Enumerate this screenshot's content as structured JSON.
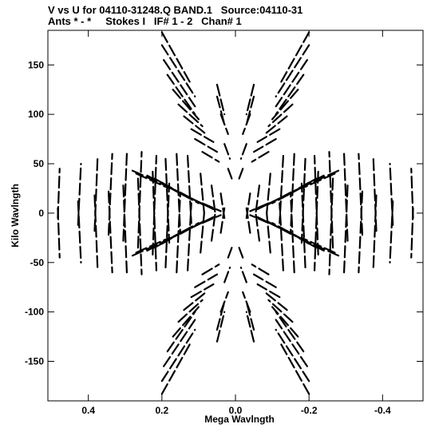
{
  "header": {
    "line1": "V vs U for 04110-31248.Q BAND.1   Source:04110-31",
    "line2": "Ants * - *     Stokes I   IF# 1 - 2   Chan# 1"
  },
  "chart_data": {
    "type": "scatter",
    "title": "V vs U for 04110-31248.Q BAND.1   Source:04110-31",
    "subtitle": "Ants * - *     Stokes I   IF# 1 - 2   Chan# 1",
    "xlabel": "Mega Wavlngth",
    "ylabel": "Kilo Wavlngth",
    "x_reversed": true,
    "xlim": [
      0.51,
      -0.51
    ],
    "ylim": [
      -190,
      185
    ],
    "x_ticks": [
      0.4,
      0.2,
      0,
      -0.2,
      -0.4
    ],
    "x_tick_labels": [
      "0.4",
      "0.2",
      "0.0",
      "-0.2",
      "-0.4"
    ],
    "y_ticks": [
      -150,
      -100,
      -50,
      0,
      50,
      100,
      150
    ],
    "y_tick_labels": [
      "-150",
      "-100",
      "-50",
      "0",
      "50",
      "100",
      "150"
    ],
    "grid": false,
    "marker_color": "#000000",
    "description_of_pattern": "uv-coverage tracks: mirrored arc segments forming an X/hourglass pattern",
    "series": [
      {
        "values": [
          [
            0.483,
            -5,
            0.478,
            45
          ],
          [
            0.428,
            -12,
            0.42,
            50
          ],
          [
            0.383,
            -18,
            0.375,
            55
          ],
          [
            0.345,
            -22,
            0.335,
            60
          ],
          [
            0.305,
            -28,
            0.295,
            63
          ],
          [
            0.265,
            -35,
            0.255,
            62
          ],
          [
            0.225,
            -42,
            0.215,
            58
          ],
          [
            0.19,
            -55,
            0.18,
            30
          ],
          [
            0.16,
            -60,
            0.15,
            20
          ],
          [
            0.13,
            -58,
            0.12,
            10
          ],
          [
            0.095,
            -40,
            0.085,
            0
          ],
          [
            0.065,
            -28,
            0.055,
            0
          ],
          [
            0.04,
            -20,
            0.03,
            5
          ],
          [
            0.2,
            183,
            0.12,
            130
          ],
          [
            0.2,
            170,
            0.11,
            118
          ],
          [
            0.195,
            155,
            0.11,
            108
          ],
          [
            0.185,
            140,
            0.11,
            100
          ],
          [
            0.17,
            125,
            0.1,
            95
          ],
          [
            0.155,
            110,
            0.09,
            88
          ],
          [
            0.14,
            98,
            0.08,
            80
          ],
          [
            0.12,
            85,
            0.06,
            72
          ],
          [
            0.11,
            75,
            0.05,
            62
          ],
          [
            0.09,
            62,
            0.045,
            52
          ],
          [
            0.05,
            130,
            0.03,
            100
          ],
          [
            0.05,
            118,
            0.03,
            90
          ],
          [
            0.04,
            100,
            0.02,
            80
          ],
          [
            0.03,
            70,
            0.015,
            55
          ],
          [
            0.02,
            45,
            0.01,
            35
          ],
          [
            0.28,
            43,
            0.19,
            28
          ],
          [
            0.27,
            40,
            0.18,
            25
          ],
          [
            0.24,
            38,
            0.16,
            22
          ],
          [
            0.22,
            35,
            0.14,
            18
          ],
          [
            0.2,
            31,
            0.12,
            14
          ],
          [
            0.18,
            26,
            0.1,
            10
          ],
          [
            0.15,
            21,
            0.08,
            7
          ],
          [
            0.12,
            15,
            0.06,
            4
          ],
          [
            0.09,
            10,
            0.04,
            2
          ]
        ]
      }
    ]
  }
}
